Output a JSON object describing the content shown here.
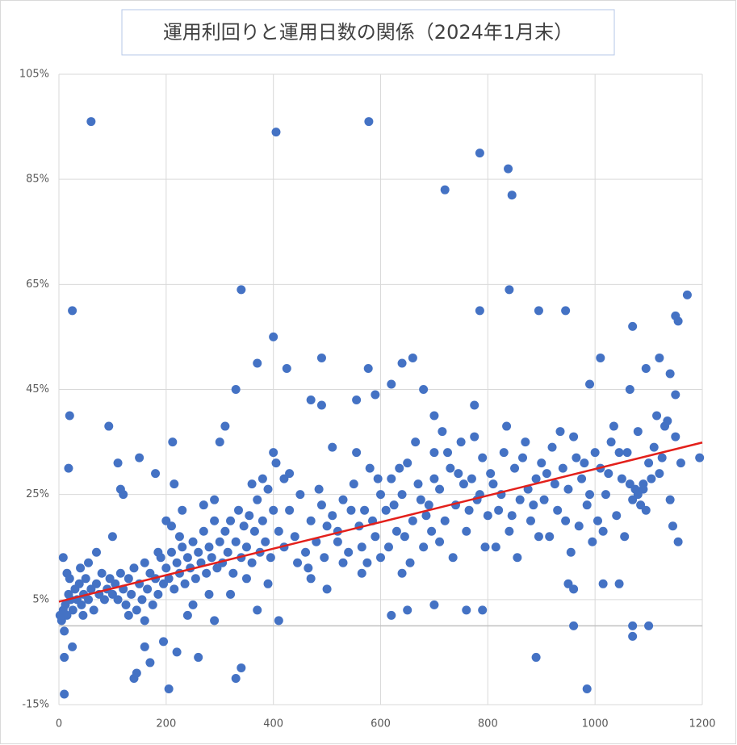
{
  "chart_data": {
    "type": "scatter",
    "title": "運用利回りと運用日数の関係（2024年1月末）",
    "color": "#4472c4",
    "xlim": [
      0,
      1200
    ],
    "xticks": [
      0,
      200,
      400,
      600,
      800,
      1000,
      1200
    ],
    "ylim": [
      -15,
      105
    ],
    "yticks": [
      {
        "value": -15,
        "label": "-15%"
      },
      {
        "value": 5,
        "label": "5%"
      },
      {
        "value": 25,
        "label": "25%"
      },
      {
        "value": 45,
        "label": "45%"
      },
      {
        "value": 65,
        "label": "65%"
      },
      {
        "value": 85,
        "label": "85%"
      },
      {
        "value": 105,
        "label": "105%"
      }
    ],
    "grid": true,
    "x": [
      60,
      405,
      578,
      785,
      838,
      720,
      845,
      25,
      340,
      840,
      895,
      945,
      1172,
      1150,
      1155,
      785,
      1070,
      400,
      490,
      370,
      1010,
      1120,
      1095,
      425,
      577,
      660,
      640,
      680,
      990,
      1065,
      1140,
      20,
      93,
      18,
      150,
      110,
      180,
      212,
      330,
      310,
      300,
      470,
      490,
      555,
      590,
      620,
      700,
      775,
      1150,
      1195,
      10,
      10,
      205,
      140,
      145,
      170,
      220,
      260,
      330,
      340,
      890,
      985,
      960,
      1070,
      1070,
      1100,
      410,
      370,
      290,
      25,
      10,
      195,
      160,
      700,
      650,
      620,
      760,
      790,
      960,
      950,
      1015,
      1045,
      565,
      640,
      470,
      500,
      2,
      5,
      8,
      12,
      15,
      18,
      22,
      26,
      30,
      34,
      38,
      42,
      46,
      50,
      55,
      60,
      65,
      70,
      75,
      80,
      85,
      90,
      95,
      100,
      20,
      40,
      55,
      70,
      100,
      8,
      15,
      45,
      105,
      110,
      115,
      120,
      125,
      130,
      135,
      140,
      145,
      150,
      155,
      160,
      165,
      170,
      175,
      180,
      185,
      190,
      195,
      200,
      115,
      120,
      185,
      160,
      130,
      205,
      210,
      215,
      220,
      225,
      230,
      235,
      240,
      245,
      250,
      255,
      260,
      265,
      270,
      275,
      280,
      285,
      290,
      295,
      300,
      210,
      230,
      250,
      270,
      290,
      280,
      240,
      215,
      200,
      225,
      305,
      310,
      315,
      320,
      325,
      330,
      335,
      340,
      345,
      350,
      355,
      360,
      365,
      370,
      375,
      380,
      385,
      390,
      395,
      400,
      360,
      380,
      400,
      405,
      350,
      320,
      390,
      410,
      420,
      430,
      440,
      450,
      460,
      470,
      480,
      490,
      500,
      420,
      445,
      465,
      485,
      495,
      430,
      510,
      520,
      530,
      540,
      550,
      560,
      570,
      580,
      590,
      600,
      510,
      530,
      555,
      575,
      595,
      520,
      545,
      565,
      585,
      600,
      610,
      620,
      630,
      640,
      650,
      660,
      670,
      680,
      690,
      700,
      615,
      635,
      655,
      665,
      675,
      695,
      700,
      625,
      645,
      685,
      710,
      720,
      730,
      740,
      750,
      760,
      770,
      780,
      790,
      800,
      715,
      735,
      755,
      775,
      795,
      710,
      745,
      765,
      785,
      725,
      810,
      820,
      830,
      840,
      850,
      860,
      870,
      880,
      890,
      900,
      815,
      835,
      855,
      875,
      895,
      805,
      825,
      845,
      865,
      885,
      910,
      920,
      930,
      940,
      950,
      960,
      970,
      980,
      990,
      1000,
      915,
      935,
      955,
      975,
      995,
      905,
      925,
      945,
      965,
      985,
      1010,
      1020,
      1030,
      1040,
      1050,
      1060,
      1070,
      1080,
      1090,
      1100,
      1015,
      1035,
      1055,
      1075,
      1095,
      1005,
      1025,
      1045,
      1065,
      1085,
      1080,
      1090,
      1110,
      1120,
      1130,
      1140,
      1150,
      1160,
      1145,
      1155,
      1135,
      1125,
      1105,
      1115
    ],
    "values": [
      96,
      94,
      96,
      90,
      87,
      83,
      82,
      60,
      64,
      64,
      60,
      60,
      63,
      59,
      58,
      60,
      57,
      55,
      51,
      50,
      51,
      51,
      49,
      49,
      49,
      51,
      50,
      45,
      46,
      45,
      48,
      40,
      38,
      30,
      32,
      31,
      29,
      35,
      45,
      38,
      35,
      43,
      42,
      43,
      44,
      46,
      40,
      42,
      44,
      32,
      -13,
      -6,
      -12,
      -10,
      -9,
      -7,
      -5,
      -6,
      -10,
      -8,
      -6,
      -12,
      0,
      -2,
      0,
      0,
      1,
      3,
      1,
      -4,
      -1,
      -3,
      -4,
      4,
      3,
      2,
      3,
      3,
      7,
      8,
      8,
      8,
      10,
      10,
      9,
      7,
      2,
      1,
      3,
      4,
      2,
      6,
      5,
      3,
      7,
      5,
      8,
      4,
      6,
      9,
      5,
      7,
      3,
      8,
      6,
      10,
      5,
      7,
      9,
      6,
      9,
      11,
      12,
      14,
      17,
      13,
      10,
      2,
      8,
      5,
      10,
      7,
      4,
      9,
      6,
      11,
      3,
      8,
      5,
      12,
      7,
      10,
      4,
      9,
      6,
      13,
      8,
      11,
      26,
      25,
      14,
      1,
      2,
      9,
      14,
      7,
      12,
      10,
      15,
      8,
      13,
      11,
      16,
      9,
      14,
      12,
      18,
      10,
      15,
      13,
      20,
      11,
      16,
      19,
      22,
      4,
      23,
      24,
      6,
      2,
      27,
      20,
      17,
      12,
      18,
      14,
      20,
      10,
      16,
      22,
      13,
      19,
      15,
      21,
      12,
      18,
      24,
      14,
      20,
      16,
      26,
      13,
      22,
      27,
      28,
      33,
      31,
      9,
      6,
      8,
      18,
      15,
      22,
      17,
      25,
      14,
      20,
      16,
      23,
      19,
      28,
      12,
      11,
      26,
      13,
      29,
      21,
      16,
      24,
      14,
      27,
      19,
      22,
      30,
      17,
      25,
      34,
      12,
      33,
      12,
      28,
      18,
      22,
      15,
      20,
      13,
      22,
      28,
      18,
      25,
      31,
      20,
      27,
      15,
      23,
      33,
      15,
      30,
      12,
      35,
      24,
      18,
      28,
      23,
      17,
      21,
      26,
      20,
      30,
      23,
      35,
      18,
      28,
      24,
      32,
      21,
      37,
      13,
      27,
      36,
      15,
      16,
      29,
      22,
      25,
      33,
      27,
      22,
      33,
      18,
      30,
      24,
      35,
      20,
      28,
      31,
      15,
      38,
      13,
      26,
      17,
      29,
      25,
      21,
      32,
      23,
      29,
      34,
      22,
      30,
      26,
      36,
      19,
      31,
      25,
      33,
      17,
      37,
      14,
      28,
      16,
      24,
      27,
      20,
      32,
      23,
      30,
      25,
      35,
      21,
      28,
      33,
      24,
      37,
      27,
      31,
      18,
      38,
      17,
      26,
      22,
      20,
      29,
      33,
      27,
      23,
      25,
      26,
      34,
      29,
      38,
      24,
      36,
      31,
      19,
      16,
      39,
      32,
      28,
      40
    ],
    "trend": {
      "color": "#e3201b",
      "x": [
        0,
        1200
      ],
      "values": [
        4.6,
        34.9
      ]
    }
  }
}
